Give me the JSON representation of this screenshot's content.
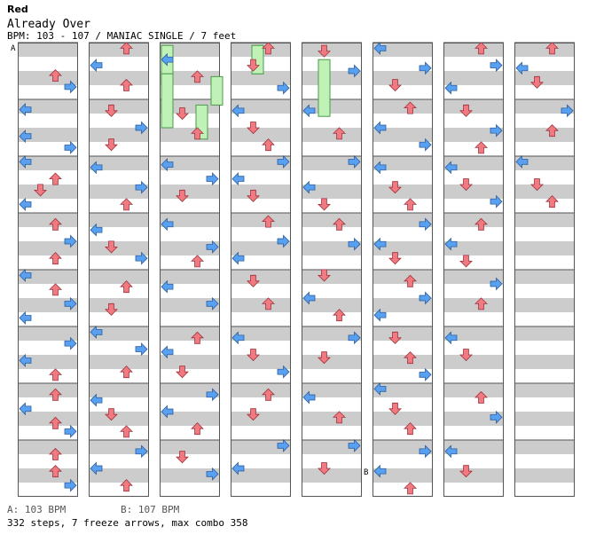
{
  "player": "Red",
  "song_title": "Already Over",
  "chart_info": "BPM: 103 - 107 / MANIAC SINGLE / 7 feet",
  "bpm_markers": [
    {
      "label": "A",
      "column": 0,
      "measure": 0
    },
    {
      "label": "B",
      "column": 5,
      "measure": 7
    }
  ],
  "legend": {
    "a": "A: 103 BPM",
    "b": "B: 107 BPM"
  },
  "summary": "332 steps, 7 freeze arrows, max combo 358",
  "colors": {
    "left": "#5aa0f0",
    "down": "#f07a82",
    "up": "#f07a82",
    "right": "#5aa0f0",
    "stripe": "#cccccc",
    "freeze": "#c0f2b8",
    "freeze_border": "#4a9a4a"
  },
  "chart_data": {
    "type": "step-chart",
    "columns": 8,
    "measures_per_column": 8,
    "lanes": [
      "left",
      "down",
      "up",
      "right"
    ],
    "notes": [
      [
        [
          0,
          0,
          0.58,
          "up"
        ],
        [
          0,
          0,
          0.78,
          "right"
        ],
        [
          0,
          1,
          0.18,
          "left"
        ],
        [
          0,
          1,
          0.65,
          "left"
        ],
        [
          0,
          1,
          0.85,
          "right"
        ],
        [
          0,
          2,
          0.1,
          "left"
        ],
        [
          0,
          2,
          0.4,
          "up"
        ],
        [
          0,
          2,
          0.6,
          "down"
        ],
        [
          0,
          2,
          0.85,
          "left"
        ],
        [
          0,
          3,
          0.2,
          "up"
        ],
        [
          0,
          3,
          0.5,
          "right"
        ],
        [
          0,
          3,
          0.8,
          "up"
        ],
        [
          0,
          4,
          0.1,
          "left"
        ],
        [
          0,
          4,
          0.35,
          "up"
        ],
        [
          0,
          4,
          0.6,
          "right"
        ],
        [
          0,
          4,
          0.85,
          "left"
        ],
        [
          0,
          5,
          0.3,
          "right"
        ],
        [
          0,
          5,
          0.6,
          "left"
        ],
        [
          0,
          5,
          0.85,
          "up"
        ],
        [
          0,
          6,
          0.2,
          "up"
        ],
        [
          0,
          6,
          0.45,
          "left"
        ],
        [
          0,
          6,
          0.7,
          "up"
        ],
        [
          0,
          6,
          0.85,
          "right"
        ],
        [
          0,
          7,
          0.25,
          "up"
        ],
        [
          0,
          7,
          0.55,
          "up"
        ],
        [
          0,
          7,
          0.8,
          "right"
        ],
        [
          0,
          8,
          0.2,
          "left"
        ],
        [
          0,
          8,
          0.45,
          "right"
        ],
        [
          0,
          8,
          0.75,
          "up"
        ]
      ],
      [
        [
          1,
          0,
          0.1,
          "up"
        ],
        [
          1,
          0,
          0.4,
          "left"
        ],
        [
          1,
          0,
          0.75,
          "up"
        ],
        [
          1,
          1,
          0.2,
          "down"
        ],
        [
          1,
          1,
          0.5,
          "right"
        ],
        [
          1,
          1,
          0.8,
          "down"
        ],
        [
          1,
          2,
          0.2,
          "left"
        ],
        [
          1,
          2,
          0.55,
          "right"
        ],
        [
          1,
          2,
          0.85,
          "up"
        ],
        [
          1,
          3,
          0.3,
          "left"
        ],
        [
          1,
          3,
          0.6,
          "down"
        ],
        [
          1,
          3,
          0.8,
          "right"
        ],
        [
          1,
          4,
          0.3,
          "up"
        ],
        [
          1,
          4,
          0.7,
          "down"
        ],
        [
          1,
          5,
          0.1,
          "left"
        ],
        [
          1,
          5,
          0.4,
          "right"
        ],
        [
          1,
          5,
          0.8,
          "up"
        ],
        [
          1,
          6,
          0.3,
          "left"
        ],
        [
          1,
          6,
          0.55,
          "down"
        ],
        [
          1,
          6,
          0.85,
          "up"
        ],
        [
          1,
          7,
          0.2,
          "right"
        ],
        [
          1,
          7,
          0.5,
          "left"
        ],
        [
          1,
          7,
          0.8,
          "up"
        ],
        [
          1,
          8,
          0.1,
          "down"
        ],
        [
          1,
          8,
          0.45,
          "up"
        ],
        [
          1,
          8,
          0.75,
          "up"
        ]
      ],
      [
        [
          2,
          0,
          0.3,
          "left"
        ],
        [
          2,
          0,
          0.6,
          "up"
        ],
        [
          2,
          1,
          0.25,
          "down"
        ],
        [
          2,
          1,
          0.6,
          "up"
        ],
        [
          2,
          2,
          0.15,
          "left"
        ],
        [
          2,
          2,
          0.4,
          "right"
        ],
        [
          2,
          2,
          0.7,
          "down"
        ],
        [
          2,
          3,
          0.2,
          "left"
        ],
        [
          2,
          3,
          0.6,
          "right"
        ],
        [
          2,
          3,
          0.85,
          "up"
        ],
        [
          2,
          4,
          0.3,
          "left"
        ],
        [
          2,
          4,
          0.6,
          "right"
        ],
        [
          2,
          5,
          0.2,
          "up"
        ],
        [
          2,
          5,
          0.45,
          "left"
        ],
        [
          2,
          5,
          0.8,
          "down"
        ],
        [
          2,
          6,
          0.2,
          "right"
        ],
        [
          2,
          6,
          0.5,
          "left"
        ],
        [
          2,
          6,
          0.8,
          "up"
        ],
        [
          2,
          7,
          0.3,
          "down"
        ],
        [
          2,
          7,
          0.6,
          "right"
        ],
        [
          2,
          8,
          0.2,
          "left"
        ],
        [
          2,
          8,
          0.55,
          "right"
        ],
        [
          2,
          8,
          0.85,
          "down"
        ]
      ],
      [
        [
          3,
          0,
          0.1,
          "up"
        ],
        [
          3,
          0,
          0.4,
          "down"
        ],
        [
          3,
          0,
          0.8,
          "right"
        ],
        [
          3,
          1,
          0.2,
          "left"
        ],
        [
          3,
          1,
          0.5,
          "down"
        ],
        [
          3,
          1,
          0.8,
          "up"
        ],
        [
          3,
          2,
          0.1,
          "right"
        ],
        [
          3,
          2,
          0.4,
          "left"
        ],
        [
          3,
          2,
          0.7,
          "down"
        ],
        [
          3,
          3,
          0.15,
          "up"
        ],
        [
          3,
          3,
          0.5,
          "right"
        ],
        [
          3,
          3,
          0.8,
          "left"
        ],
        [
          3,
          4,
          0.2,
          "down"
        ],
        [
          3,
          4,
          0.6,
          "up"
        ],
        [
          3,
          5,
          0.2,
          "left"
        ],
        [
          3,
          5,
          0.5,
          "down"
        ],
        [
          3,
          5,
          0.8,
          "right"
        ],
        [
          3,
          6,
          0.2,
          "up"
        ],
        [
          3,
          6,
          0.55,
          "down"
        ],
        [
          3,
          7,
          0.1,
          "right"
        ],
        [
          3,
          7,
          0.5,
          "left"
        ],
        [
          3,
          8,
          0.2,
          "down"
        ],
        [
          3,
          8,
          0.55,
          "up"
        ],
        [
          3,
          8,
          0.8,
          "right"
        ]
      ],
      [
        [
          4,
          0,
          0.15,
          "down"
        ],
        [
          4,
          0,
          0.5,
          "right"
        ],
        [
          4,
          1,
          0.2,
          "left"
        ],
        [
          4,
          1,
          0.6,
          "up"
        ],
        [
          4,
          2,
          0.1,
          "right"
        ],
        [
          4,
          2,
          0.55,
          "left"
        ],
        [
          4,
          2,
          0.85,
          "down"
        ],
        [
          4,
          3,
          0.2,
          "up"
        ],
        [
          4,
          3,
          0.55,
          "right"
        ],
        [
          4,
          4,
          0.1,
          "down"
        ],
        [
          4,
          4,
          0.5,
          "left"
        ],
        [
          4,
          4,
          0.8,
          "up"
        ],
        [
          4,
          5,
          0.2,
          "right"
        ],
        [
          4,
          5,
          0.55,
          "down"
        ],
        [
          4,
          6,
          0.25,
          "left"
        ],
        [
          4,
          6,
          0.6,
          "up"
        ],
        [
          4,
          7,
          0.1,
          "right"
        ],
        [
          4,
          7,
          0.5,
          "down"
        ],
        [
          4,
          8,
          0.2,
          "left"
        ],
        [
          4,
          8,
          0.5,
          "up"
        ],
        [
          4,
          8,
          0.85,
          "right"
        ]
      ],
      [
        [
          5,
          0,
          0.1,
          "left"
        ],
        [
          5,
          0,
          0.45,
          "right"
        ],
        [
          5,
          0,
          0.75,
          "down"
        ],
        [
          5,
          1,
          0.15,
          "up"
        ],
        [
          5,
          1,
          0.5,
          "left"
        ],
        [
          5,
          1,
          0.8,
          "right"
        ],
        [
          5,
          2,
          0.2,
          "left"
        ],
        [
          5,
          2,
          0.55,
          "down"
        ],
        [
          5,
          2,
          0.85,
          "up"
        ],
        [
          5,
          3,
          0.2,
          "right"
        ],
        [
          5,
          3,
          0.55,
          "left"
        ],
        [
          5,
          3,
          0.8,
          "down"
        ],
        [
          5,
          4,
          0.2,
          "up"
        ],
        [
          5,
          4,
          0.5,
          "right"
        ],
        [
          5,
          4,
          0.8,
          "left"
        ],
        [
          5,
          5,
          0.2,
          "down"
        ],
        [
          5,
          5,
          0.55,
          "up"
        ],
        [
          5,
          5,
          0.85,
          "right"
        ],
        [
          5,
          6,
          0.1,
          "left"
        ],
        [
          5,
          6,
          0.45,
          "down"
        ],
        [
          5,
          6,
          0.8,
          "up"
        ],
        [
          5,
          7,
          0.2,
          "right"
        ],
        [
          5,
          7,
          0.55,
          "left"
        ],
        [
          5,
          7,
          0.85,
          "up"
        ],
        [
          5,
          8,
          0.2,
          "left"
        ],
        [
          5,
          8,
          0.5,
          "down"
        ],
        [
          5,
          8,
          0.8,
          "right"
        ]
      ],
      [
        [
          6,
          0,
          0.1,
          "up"
        ],
        [
          6,
          0,
          0.4,
          "right"
        ],
        [
          6,
          0,
          0.8,
          "left"
        ],
        [
          6,
          1,
          0.2,
          "down"
        ],
        [
          6,
          1,
          0.55,
          "right"
        ],
        [
          6,
          1,
          0.85,
          "up"
        ],
        [
          6,
          2,
          0.2,
          "left"
        ],
        [
          6,
          2,
          0.5,
          "down"
        ],
        [
          6,
          2,
          0.8,
          "right"
        ],
        [
          6,
          3,
          0.2,
          "up"
        ],
        [
          6,
          3,
          0.55,
          "left"
        ],
        [
          6,
          3,
          0.85,
          "down"
        ],
        [
          6,
          4,
          0.25,
          "right"
        ],
        [
          6,
          4,
          0.6,
          "up"
        ],
        [
          6,
          5,
          0.2,
          "left"
        ],
        [
          6,
          5,
          0.5,
          "down"
        ],
        [
          6,
          6,
          0.25,
          "up"
        ],
        [
          6,
          6,
          0.6,
          "right"
        ],
        [
          6,
          7,
          0.2,
          "left"
        ],
        [
          6,
          7,
          0.55,
          "down"
        ],
        [
          6,
          8,
          0.2,
          "up"
        ],
        [
          6,
          8,
          0.5,
          "right"
        ],
        [
          6,
          8,
          0.85,
          "left"
        ]
      ],
      [
        [
          7,
          0,
          0.1,
          "up"
        ],
        [
          7,
          0,
          0.45,
          "left"
        ],
        [
          7,
          0,
          0.7,
          "down"
        ],
        [
          7,
          1,
          0.2,
          "right"
        ],
        [
          7,
          1,
          0.55,
          "up"
        ],
        [
          7,
          2,
          0.1,
          "left"
        ],
        [
          7,
          2,
          0.5,
          "down"
        ],
        [
          7,
          2,
          0.8,
          "up"
        ]
      ]
    ],
    "freezes": [
      [
        2,
        0,
        0.05,
        0.55
      ],
      [
        2,
        0,
        0.55,
        1.5
      ],
      [
        1,
        7,
        1.1,
        1.7
      ],
      [
        1,
        8,
        0.6,
        1.1
      ],
      [
        2,
        6,
        0.05,
        0.55
      ],
      [
        2,
        6,
        0.05,
        0.55
      ],
      [
        4,
        1,
        0.3,
        1.3
      ]
    ]
  }
}
